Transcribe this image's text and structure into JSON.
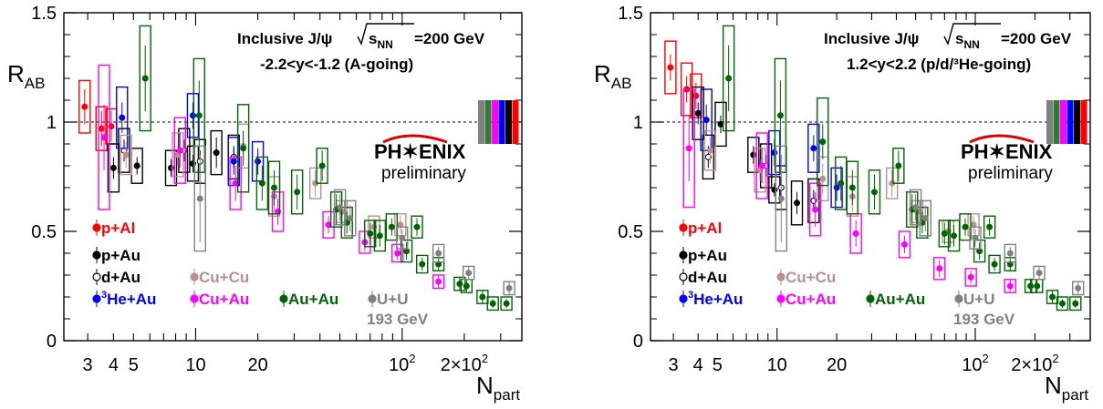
{
  "chart_data": [
    {
      "type": "scatter",
      "header": {
        "line1": "Inclusive J/ψ",
        "energy": "=200 GeV",
        "line2": "-2.2<y<-1.2 (A-going)"
      },
      "xlabel": "N",
      "xlabel_sub": "part",
      "ylabel": "R",
      "ylabel_sub": "AB",
      "x_scale": "log",
      "xlim": [
        2.3,
        380
      ],
      "ylim": [
        0,
        1.5
      ],
      "y_ticks": [
        "0",
        "0.5",
        "1",
        "1.5"
      ],
      "x_ticks": [
        "3",
        "4",
        "5",
        "10",
        "20",
        "10",
        "2×10"
      ],
      "logo": "PH✶ENIX",
      "watermark": "preliminary",
      "reference_line": 1,
      "global_boxes": [
        "#808080",
        "#2e7d32",
        "#ff00ff",
        "#0000ff",
        "#000000",
        "#ff0000"
      ],
      "series": [
        {
          "name": "p+Al",
          "color": "#ff0000",
          "open": false,
          "points": [
            [
              2.9,
              1.07,
              0.08,
              0.12
            ],
            [
              3.5,
              0.97,
              0.08,
              0.1
            ],
            [
              3.9,
              0.98,
              0.07,
              0.08
            ]
          ]
        },
        {
          "name": "p+Au",
          "color": "#000000",
          "open": false,
          "points": [
            [
              4.0,
              0.79,
              0.05,
              0.11
            ],
            [
              5.2,
              0.8,
              0.04,
              0.08
            ],
            [
              7.6,
              0.79,
              0.04,
              0.08
            ],
            [
              9.7,
              0.81,
              0.04,
              0.08
            ],
            [
              12.6,
              0.86,
              0.07,
              0.1
            ]
          ]
        },
        {
          "name": "d+Au",
          "color": "#000000",
          "open": true,
          "points": [
            [
              4.5,
              0.87,
              0.05,
              0.1
            ],
            [
              8.8,
              0.87,
              0.05,
              0.1
            ],
            [
              10.5,
              0.82,
              0.05,
              0.1
            ],
            [
              15.3,
              0.84,
              0.05,
              0.1
            ]
          ]
        },
        {
          "name": "He+Au",
          "color": "#0000ff",
          "open": false,
          "points": [
            [
              4.4,
              1.02,
              0.07,
              0.14
            ],
            [
              9.7,
              1.03,
              0.06,
              0.1
            ],
            [
              15.3,
              0.82,
              0.06,
              0.11
            ],
            [
              20.0,
              0.82,
              0.06,
              0.09
            ]
          ]
        },
        {
          "name": "Cu+Cu",
          "color": "#bc8f8f",
          "open": false,
          "points": [
            [
              4.6,
              0.85,
              0.06,
              0.09
            ],
            [
              8.2,
              0.85,
              0.05,
              0.1
            ],
            [
              17.0,
              0.89,
              0.07,
              0.1
            ],
            [
              24.0,
              0.66,
              0.07,
              0.09
            ],
            [
              38.0,
              0.72,
              0.06,
              0.07
            ],
            [
              51.0,
              0.59,
              0.05,
              0.05
            ],
            [
              73.0,
              0.52,
              0.04,
              0.05
            ],
            [
              98.0,
              0.53,
              0.04,
              0.05
            ]
          ]
        },
        {
          "name": "Cu+Au",
          "color": "#ff00ff",
          "open": false,
          "points": [
            [
              3.6,
              0.93,
              0.15,
              0.33
            ],
            [
              8.4,
              0.87,
              0.08,
              0.15
            ],
            [
              15.6,
              0.72,
              0.08,
              0.12
            ],
            [
              25.0,
              0.59,
              0.06,
              0.09
            ],
            [
              44.0,
              0.53,
              0.04,
              0.06
            ],
            [
              66.0,
              0.45,
              0.04,
              0.05
            ],
            [
              95.0,
              0.4,
              0.03,
              0.04
            ],
            [
              150.0,
              0.27,
              0.03,
              0.03
            ]
          ]
        },
        {
          "name": "Au+Au",
          "color": "#006400",
          "open": false,
          "points": [
            [
              5.7,
              1.2,
              0.15,
              0.24
            ],
            [
              10.4,
              1.03,
              0.16,
              0.26
            ],
            [
              17.0,
              0.88,
              0.08,
              0.2
            ],
            [
              21.0,
              0.72,
              0.08,
              0.12
            ],
            [
              24.0,
              0.7,
              0.08,
              0.12
            ],
            [
              31.0,
              0.68,
              0.08,
              0.1
            ],
            [
              41.0,
              0.8,
              0.07,
              0.08
            ],
            [
              48.0,
              0.6,
              0.07,
              0.08
            ],
            [
              54.0,
              0.54,
              0.05,
              0.07
            ],
            [
              70.0,
              0.49,
              0.05,
              0.06
            ],
            [
              78.0,
              0.48,
              0.05,
              0.07
            ],
            [
              89.0,
              0.52,
              0.04,
              0.06
            ],
            [
              105.0,
              0.41,
              0.04,
              0.05
            ],
            [
              118.0,
              0.52,
              0.04,
              0.05
            ],
            [
              125.0,
              0.35,
              0.03,
              0.04
            ],
            [
              150.0,
              0.35,
              0.03,
              0.03
            ],
            [
              190.0,
              0.26,
              0.03,
              0.03
            ],
            [
              205.0,
              0.25,
              0.03,
              0.03
            ],
            [
              245.0,
              0.2,
              0.03,
              0.03
            ],
            [
              275.0,
              0.17,
              0.02,
              0.03
            ],
            [
              320.0,
              0.17,
              0.02,
              0.03
            ]
          ]
        },
        {
          "name": "U+U",
          "color": "#808080",
          "open": false,
          "points": [
            [
              10.5,
              0.65,
              0.2,
              0.24
            ],
            [
              50.0,
              0.61,
              0.06,
              0.08
            ],
            [
              56.0,
              0.56,
              0.06,
              0.08
            ],
            [
              100.0,
              0.47,
              0.04,
              0.05
            ],
            [
              150.0,
              0.4,
              0.03,
              0.04
            ],
            [
              210.0,
              0.31,
              0.03,
              0.03
            ],
            [
              330.0,
              0.24,
              0.03,
              0.03
            ]
          ]
        }
      ]
    },
    {
      "type": "scatter",
      "header": {
        "line1": "Inclusive J/ψ",
        "energy": "=200 GeV",
        "line2": "1.2<y<2.2 (p/d/³He-going)"
      },
      "xlabel": "N",
      "xlabel_sub": "part",
      "ylabel": "R",
      "ylabel_sub": "AB",
      "x_scale": "log",
      "xlim": [
        2.3,
        380
      ],
      "ylim": [
        0,
        1.5
      ],
      "y_ticks": [
        "0",
        "0.5",
        "1",
        "1.5"
      ],
      "x_ticks": [
        "3",
        "4",
        "5",
        "10",
        "20",
        "10",
        "2×10"
      ],
      "logo": "PH✶ENIX",
      "watermark": "preliminary",
      "reference_line": 1,
      "global_boxes": [
        "#808080",
        "#2e7d32",
        "#ff00ff",
        "#0000ff",
        "#000000",
        "#ff0000"
      ],
      "series": [
        {
          "name": "p+Al",
          "color": "#ff0000",
          "open": false,
          "points": [
            [
              2.9,
              1.25,
              0.06,
              0.12
            ],
            [
              3.5,
              1.15,
              0.06,
              0.12
            ],
            [
              3.9,
              1.12,
              0.06,
              0.1
            ]
          ]
        },
        {
          "name": "p+Au",
          "color": "#000000",
          "open": false,
          "points": [
            [
              4.0,
              1.04,
              0.05,
              0.12
            ],
            [
              5.2,
              0.99,
              0.04,
              0.1
            ],
            [
              7.6,
              0.85,
              0.04,
              0.08
            ],
            [
              9.7,
              0.69,
              0.03,
              0.06
            ],
            [
              12.6,
              0.63,
              0.05,
              0.1
            ]
          ]
        },
        {
          "name": "d+Au",
          "color": "#000000",
          "open": true,
          "points": [
            [
              4.5,
              0.84,
              0.05,
              0.1
            ],
            [
              8.8,
              0.8,
              0.05,
              0.1
            ],
            [
              10.5,
              0.7,
              0.05,
              0.1
            ],
            [
              15.3,
              0.64,
              0.05,
              0.1
            ]
          ]
        },
        {
          "name": "He+Au",
          "color": "#0000ff",
          "open": false,
          "points": [
            [
              4.4,
              1.01,
              0.07,
              0.14
            ],
            [
              9.7,
              0.86,
              0.06,
              0.1
            ],
            [
              15.3,
              0.88,
              0.06,
              0.11
            ],
            [
              20.0,
              0.7,
              0.06,
              0.09
            ]
          ]
        },
        {
          "name": "Cu+Cu",
          "color": "#bc8f8f",
          "open": false,
          "points": [
            [
              4.6,
              0.87,
              0.06,
              0.09
            ],
            [
              8.2,
              0.78,
              0.05,
              0.1
            ],
            [
              17.0,
              0.74,
              0.07,
              0.1
            ],
            [
              24.0,
              0.66,
              0.07,
              0.09
            ],
            [
              38.0,
              0.72,
              0.06,
              0.07
            ],
            [
              51.0,
              0.59,
              0.05,
              0.05
            ],
            [
              73.0,
              0.5,
              0.04,
              0.05
            ],
            [
              98.0,
              0.53,
              0.04,
              0.05
            ]
          ]
        },
        {
          "name": "Cu+Au",
          "color": "#ff00ff",
          "open": false,
          "points": [
            [
              3.6,
              0.88,
              0.15,
              0.27
            ],
            [
              8.4,
              0.8,
              0.08,
              0.15
            ],
            [
              15.6,
              0.6,
              0.08,
              0.12
            ],
            [
              25.0,
              0.49,
              0.06,
              0.09
            ],
            [
              44.0,
              0.44,
              0.04,
              0.06
            ],
            [
              66.0,
              0.33,
              0.04,
              0.05
            ],
            [
              95.0,
              0.29,
              0.03,
              0.04
            ],
            [
              150.0,
              0.25,
              0.03,
              0.03
            ]
          ]
        },
        {
          "name": "Au+Au",
          "color": "#006400",
          "open": false,
          "points": [
            [
              5.7,
              1.2,
              0.15,
              0.24
            ],
            [
              10.4,
              1.03,
              0.16,
              0.26
            ],
            [
              17.0,
              0.91,
              0.08,
              0.2
            ],
            [
              21.0,
              0.72,
              0.08,
              0.12
            ],
            [
              24.0,
              0.7,
              0.08,
              0.12
            ],
            [
              31.0,
              0.68,
              0.08,
              0.1
            ],
            [
              41.0,
              0.8,
              0.07,
              0.08
            ],
            [
              48.0,
              0.6,
              0.07,
              0.08
            ],
            [
              54.0,
              0.54,
              0.05,
              0.07
            ],
            [
              70.0,
              0.49,
              0.05,
              0.06
            ],
            [
              78.0,
              0.48,
              0.05,
              0.07
            ],
            [
              89.0,
              0.52,
              0.04,
              0.06
            ],
            [
              105.0,
              0.41,
              0.04,
              0.05
            ],
            [
              118.0,
              0.52,
              0.04,
              0.05
            ],
            [
              125.0,
              0.35,
              0.03,
              0.04
            ],
            [
              150.0,
              0.35,
              0.03,
              0.03
            ],
            [
              190.0,
              0.25,
              0.03,
              0.03
            ],
            [
              205.0,
              0.25,
              0.03,
              0.03
            ],
            [
              245.0,
              0.2,
              0.03,
              0.03
            ],
            [
              275.0,
              0.17,
              0.02,
              0.03
            ],
            [
              320.0,
              0.17,
              0.02,
              0.03
            ]
          ]
        },
        {
          "name": "U+U",
          "color": "#808080",
          "open": false,
          "points": [
            [
              10.5,
              0.65,
              0.2,
              0.24
            ],
            [
              50.0,
              0.61,
              0.06,
              0.08
            ],
            [
              56.0,
              0.56,
              0.06,
              0.08
            ],
            [
              100.0,
              0.47,
              0.04,
              0.05
            ],
            [
              150.0,
              0.4,
              0.03,
              0.04
            ],
            [
              210.0,
              0.31,
              0.03,
              0.03
            ],
            [
              330.0,
              0.24,
              0.03,
              0.03
            ]
          ]
        }
      ],
      "legend_labels": {
        "p_al": "p+Al",
        "p_au": "p+Au",
        "d_au": "d+Au",
        "he_au_sup": "3",
        "he_au": "He+Au",
        "cu_cu": "Cu+Cu",
        "cu_au": "Cu+Au",
        "au_au": "Au+Au",
        "u_u": "U+U",
        "u_u_energy": "193 GeV"
      },
      "sqrt_label": "s",
      "sqrt_sub": "NN",
      "x_tick_exp": "2"
    }
  ]
}
